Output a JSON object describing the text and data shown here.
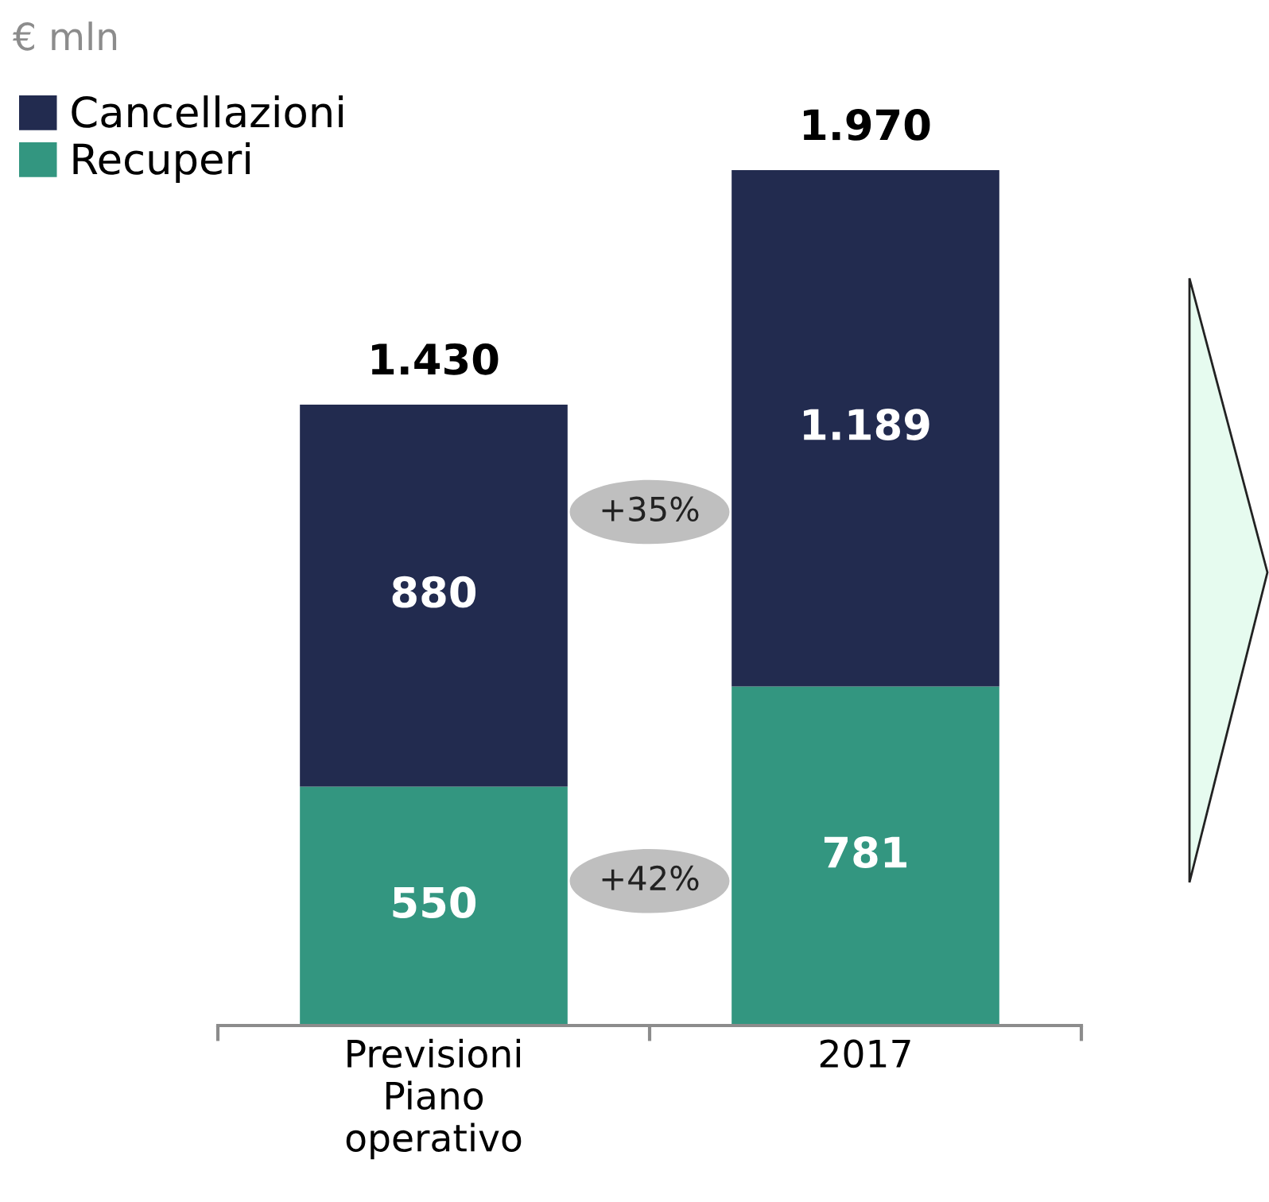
{
  "chart_data": {
    "type": "bar",
    "stacked": true,
    "categories": [
      "Previsioni Piano operativo",
      "2017"
    ],
    "series": [
      {
        "name": "Recuperi",
        "color": "#339680",
        "values": [
          550,
          781
        ],
        "value_labels": [
          "550",
          "781"
        ]
      },
      {
        "name": "Cancellazioni",
        "color": "#222b4f",
        "values": [
          880,
          1189
        ],
        "value_labels": [
          "880",
          "1.189"
        ]
      }
    ],
    "totals": [
      "1.430",
      "1.970"
    ],
    "annotations": [
      "€ mln",
      "+35%",
      "+42%"
    ],
    "legend": "top left",
    "grid": false
  }
}
